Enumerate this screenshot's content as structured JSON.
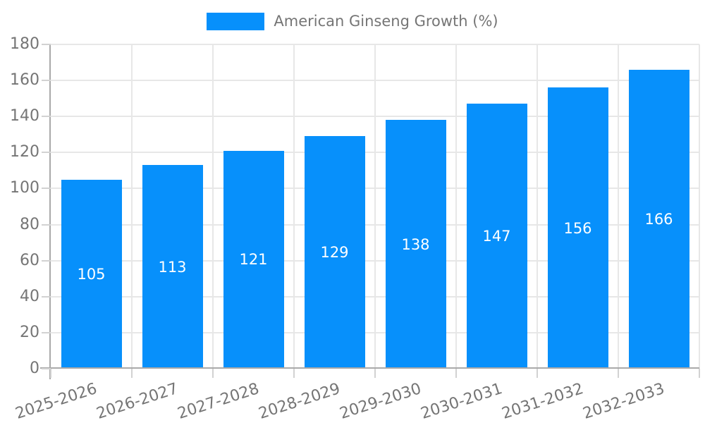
{
  "chart_data": {
    "type": "bar",
    "title": "",
    "legend": {
      "position": "top",
      "label": "American Ginseng Growth (%)"
    },
    "categories": [
      "2025-2026",
      "2026-2027",
      "2027-2028",
      "2028-2029",
      "2029-2030",
      "2030-2031",
      "2031-2032",
      "2032-2033"
    ],
    "series": [
      {
        "name": "American Ginseng Growth (%)",
        "values": [
          105,
          113,
          121,
          129,
          138,
          147,
          156,
          166
        ]
      }
    ],
    "value_labels": [
      "105",
      "113",
      "121",
      "129",
      "138",
      "147",
      "156",
      "166"
    ],
    "xlabel": "",
    "ylabel": "",
    "ylim": [
      0,
      180
    ],
    "yticks": [
      0,
      20,
      40,
      60,
      80,
      100,
      120,
      140,
      160,
      180
    ],
    "grid": true,
    "x_tick_rotation_deg": -18,
    "colors": {
      "bar": "#0790fb",
      "value_label": "#ffffff",
      "tick_text": "#757575",
      "gridline": "#e7e7e7",
      "axis_line": "#a9a9a9",
      "tick_mark": "#d2d2d2",
      "background": "#ffffff"
    }
  }
}
